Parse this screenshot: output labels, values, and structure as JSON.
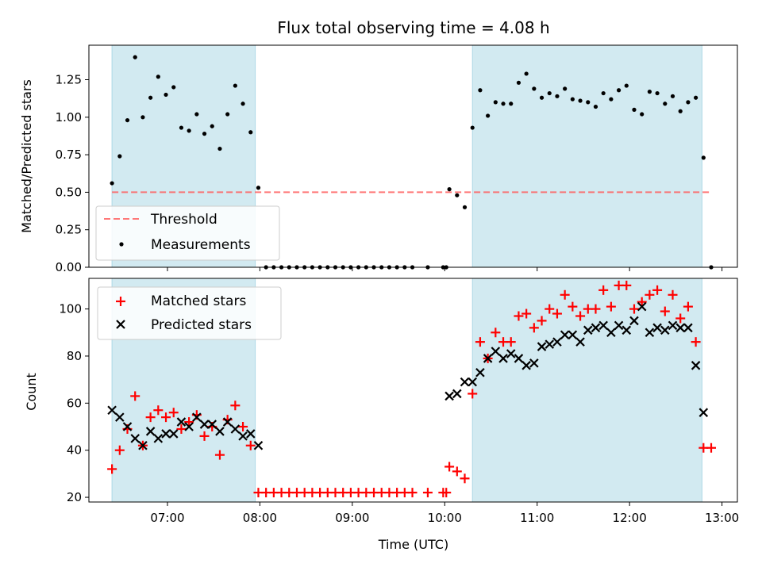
{
  "colors": {
    "shade": "#add8e6",
    "threshold": "#ff6060",
    "measurement": "#000000",
    "matched": "#ff0000",
    "predicted": "#000000"
  },
  "chart_data": [
    {
      "type": "scatter",
      "title": "Flux total observing time = 4.08 h",
      "xlabel": "",
      "ylabel": "Matched/Predicted stars",
      "ylim": [
        0,
        1.48
      ],
      "xlim": [
        "06:09",
        "13:10"
      ],
      "yticks": [
        "0.00",
        "0.25",
        "0.50",
        "0.75",
        "1.00",
        "1.25"
      ],
      "xticks": [
        "07:00",
        "08:00",
        "09:00",
        "10:00",
        "11:00",
        "12:00",
        "13:00"
      ],
      "shaded_spans": [
        [
          "06:24",
          "07:57"
        ],
        [
          "10:18",
          "12:47"
        ]
      ],
      "threshold": {
        "name": "Threshold",
        "y": 0.5,
        "x_range": [
          "06:24",
          "12:52"
        ]
      },
      "legend": {
        "position": "lower-left",
        "entries": [
          "Threshold",
          "Measurements"
        ]
      },
      "series": [
        {
          "name": "Measurements",
          "x": [
            "06:24",
            "06:29",
            "06:34",
            "06:39",
            "06:44",
            "06:49",
            "06:54",
            "06:59",
            "07:04",
            "07:09",
            "07:14",
            "07:19",
            "07:24",
            "07:29",
            "07:34",
            "07:39",
            "07:44",
            "07:49",
            "07:54",
            "07:59",
            "08:04",
            "08:09",
            "08:14",
            "08:19",
            "08:24",
            "08:29",
            "08:34",
            "08:39",
            "08:44",
            "08:49",
            "08:54",
            "08:59",
            "09:04",
            "09:09",
            "09:14",
            "09:19",
            "09:24",
            "09:29",
            "09:34",
            "09:39",
            "09:49",
            "09:59",
            "10:01",
            "10:03",
            "10:08",
            "10:13",
            "10:18",
            "10:23",
            "10:28",
            "10:33",
            "10:38",
            "10:43",
            "10:48",
            "10:53",
            "10:58",
            "11:03",
            "11:08",
            "11:13",
            "11:18",
            "11:23",
            "11:28",
            "11:33",
            "11:38",
            "11:43",
            "11:48",
            "11:53",
            "11:58",
            "12:03",
            "12:08",
            "12:13",
            "12:18",
            "12:23",
            "12:28",
            "12:33",
            "12:38",
            "12:43",
            "12:48",
            "12:53"
          ],
          "y": [
            0.56,
            0.74,
            0.98,
            1.4,
            1.0,
            1.13,
            1.27,
            1.15,
            1.2,
            0.93,
            0.91,
            1.02,
            0.89,
            0.94,
            0.79,
            1.02,
            1.21,
            1.09,
            0.9,
            0.53,
            0,
            0,
            0,
            0,
            0,
            0,
            0,
            0,
            0,
            0,
            0,
            0,
            0,
            0,
            0,
            0,
            0,
            0,
            0,
            0,
            0,
            0,
            0,
            0.52,
            0.48,
            0.4,
            0.93,
            1.18,
            1.01,
            1.1,
            1.09,
            1.09,
            1.23,
            1.29,
            1.19,
            1.13,
            1.16,
            1.14,
            1.19,
            1.12,
            1.11,
            1.1,
            1.07,
            1.16,
            1.12,
            1.18,
            1.21,
            1.05,
            1.02,
            1.17,
            1.16,
            1.09,
            1.14,
            1.04,
            1.1,
            1.13,
            0.73,
            0
          ]
        }
      ]
    },
    {
      "type": "scatter",
      "title": "",
      "xlabel": "Time (UTC)",
      "ylabel": "Count",
      "ylim": [
        18,
        113
      ],
      "xlim": [
        "06:09",
        "13:10"
      ],
      "yticks": [
        "20",
        "40",
        "60",
        "80",
        "100"
      ],
      "xticks": [
        "07:00",
        "08:00",
        "09:00",
        "10:00",
        "11:00",
        "12:00",
        "13:00"
      ],
      "shaded_spans": [
        [
          "06:24",
          "07:57"
        ],
        [
          "10:18",
          "12:47"
        ]
      ],
      "legend": {
        "position": "upper-left",
        "entries": [
          "Matched stars",
          "Predicted stars"
        ]
      },
      "series": [
        {
          "name": "Matched stars",
          "marker": "+",
          "x": [
            "06:24",
            "06:29",
            "06:34",
            "06:39",
            "06:44",
            "06:49",
            "06:54",
            "06:59",
            "07:04",
            "07:09",
            "07:14",
            "07:19",
            "07:24",
            "07:29",
            "07:34",
            "07:39",
            "07:44",
            "07:49",
            "07:54",
            "07:59",
            "08:04",
            "08:09",
            "08:14",
            "08:19",
            "08:24",
            "08:29",
            "08:34",
            "08:39",
            "08:44",
            "08:49",
            "08:54",
            "08:59",
            "09:04",
            "09:09",
            "09:14",
            "09:19",
            "09:24",
            "09:29",
            "09:34",
            "09:39",
            "09:49",
            "09:59",
            "10:01",
            "10:03",
            "10:08",
            "10:13",
            "10:18",
            "10:23",
            "10:28",
            "10:33",
            "10:38",
            "10:43",
            "10:48",
            "10:53",
            "10:58",
            "11:03",
            "11:08",
            "11:13",
            "11:18",
            "11:23",
            "11:28",
            "11:33",
            "11:38",
            "11:43",
            "11:48",
            "11:53",
            "11:58",
            "12:03",
            "12:08",
            "12:13",
            "12:18",
            "12:23",
            "12:28",
            "12:33",
            "12:38",
            "12:43",
            "12:48",
            "12:53"
          ],
          "y": [
            32,
            40,
            49,
            63,
            42,
            54,
            57,
            54,
            56,
            49,
            52,
            55,
            46,
            50,
            38,
            53,
            59,
            50,
            42,
            22,
            22,
            22,
            22,
            22,
            22,
            22,
            22,
            22,
            22,
            22,
            22,
            22,
            22,
            22,
            22,
            22,
            22,
            22,
            22,
            22,
            22,
            22,
            22,
            33,
            31,
            28,
            64,
            86,
            79,
            90,
            86,
            86,
            97,
            98,
            92,
            95,
            100,
            98,
            106,
            101,
            97,
            100,
            100,
            108,
            101,
            110,
            110,
            100,
            103,
            106,
            108,
            99,
            106,
            96,
            101,
            86,
            41,
            41
          ]
        },
        {
          "name": "Predicted stars",
          "marker": "x",
          "x": [
            "06:24",
            "06:29",
            "06:34",
            "06:39",
            "06:44",
            "06:49",
            "06:54",
            "06:59",
            "07:04",
            "07:09",
            "07:14",
            "07:19",
            "07:24",
            "07:29",
            "07:34",
            "07:39",
            "07:44",
            "07:49",
            "07:54",
            "07:59",
            "10:03",
            "10:08",
            "10:13",
            "10:18",
            "10:23",
            "10:28",
            "10:33",
            "10:38",
            "10:43",
            "10:48",
            "10:53",
            "10:58",
            "11:03",
            "11:08",
            "11:13",
            "11:18",
            "11:23",
            "11:28",
            "11:33",
            "11:38",
            "11:43",
            "11:48",
            "11:53",
            "11:58",
            "12:03",
            "12:08",
            "12:13",
            "12:18",
            "12:23",
            "12:28",
            "12:33",
            "12:38",
            "12:43",
            "12:48"
          ],
          "y": [
            57,
            54,
            50,
            45,
            42,
            48,
            45,
            47,
            47,
            52,
            50,
            54,
            51,
            51,
            48,
            52,
            49,
            46,
            47,
            42,
            63,
            64,
            69,
            69,
            73,
            79,
            82,
            79,
            81,
            79,
            76,
            77,
            84,
            85,
            86,
            89,
            89,
            86,
            91,
            92,
            93,
            90,
            93,
            91,
            95,
            101,
            90,
            92,
            91,
            93,
            92,
            92,
            76,
            56
          ]
        }
      ]
    }
  ]
}
